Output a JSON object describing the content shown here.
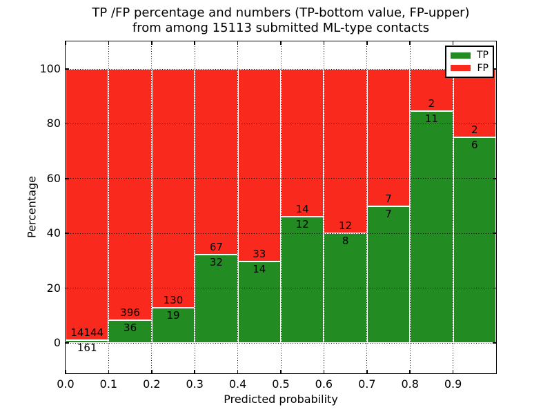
{
  "chart_data": {
    "type": "bar",
    "stacked": true,
    "units": "percent_of_bin",
    "title_line1": "TP /FP percentage and numbers (TP-bottom value, FP-upper)",
    "title_line2": "from among 15113 submitted ML-type contacts",
    "total_contacts_shown_in_title": 15113,
    "xlabel": "Predicted probability",
    "ylabel": "Percentage",
    "bin_edges": [
      0.0,
      0.1,
      0.2,
      0.3,
      0.4,
      0.5,
      0.6,
      0.7,
      0.8,
      0.9,
      1.0
    ],
    "series": [
      {
        "name": "TP",
        "color": "#228b22",
        "counts": [
          161,
          36,
          19,
          32,
          14,
          12,
          8,
          7,
          11,
          6
        ]
      },
      {
        "name": "FP",
        "color": "#f9291d",
        "counts": [
          14144,
          396,
          130,
          67,
          33,
          14,
          12,
          7,
          2,
          2
        ]
      }
    ],
    "tp_percent_per_bin": [
      1.1,
      8.3,
      12.8,
      32.3,
      29.8,
      46.2,
      40.0,
      50.0,
      84.6,
      75.0
    ],
    "x_tick_labels": [
      "0.0",
      "0.1",
      "0.2",
      "0.3",
      "0.4",
      "0.5",
      "0.6",
      "0.7",
      "0.8",
      "0.9"
    ],
    "y_tick_labels": [
      "0",
      "20",
      "40",
      "60",
      "80",
      "100"
    ],
    "y_tick_values": [
      0,
      20,
      40,
      60,
      80,
      100
    ],
    "xlim": [
      0.0,
      1.0
    ],
    "ylim": [
      -11,
      110.5
    ],
    "grid": {
      "on": true,
      "style": "dotted",
      "color": "#000000"
    },
    "legend": {
      "position": "upper right",
      "entries": [
        {
          "label": "TP",
          "color": "#228b22"
        },
        {
          "label": "FP",
          "color": "#f9291d"
        }
      ]
    }
  }
}
